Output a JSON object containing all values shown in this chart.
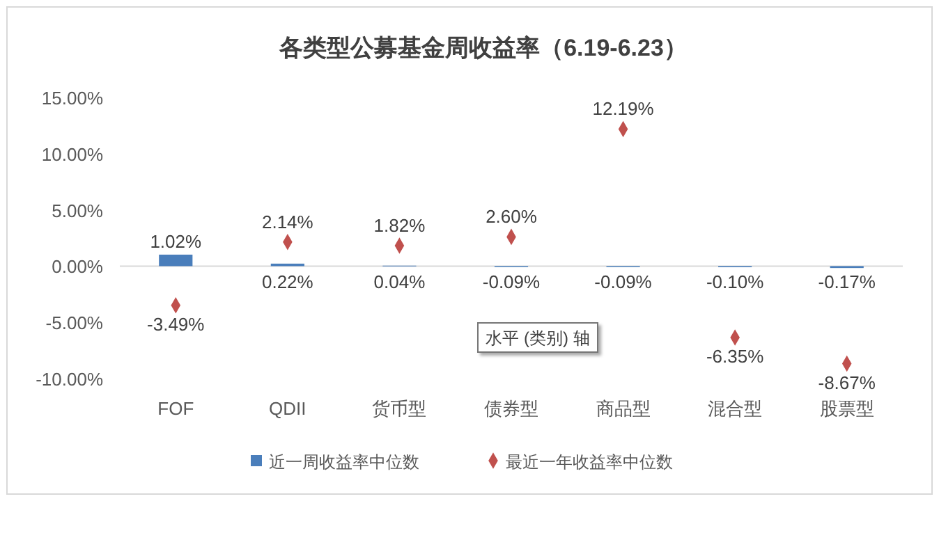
{
  "chart_data": {
    "type": "bar",
    "title": "各类型公募基金周收益率（6.19-6.23）",
    "categories": [
      "FOF",
      "QDII",
      "货币型",
      "债券型",
      "商品型",
      "混合型",
      "股票型"
    ],
    "series": [
      {
        "name": "近一周收益率中位数",
        "color": "#4a7ebb",
        "values": [
          1.02,
          0.22,
          0.04,
          -0.09,
          -0.09,
          -0.1,
          -0.17
        ],
        "value_labels": [
          "1.02%",
          "0.22%",
          "0.04%",
          "-0.09%",
          "-0.09%",
          "-0.10%",
          "-0.17%"
        ]
      },
      {
        "name": "最近一年收益率中位数",
        "type": "scatter",
        "color": "#c0504d",
        "values": [
          -3.49,
          2.14,
          1.82,
          2.6,
          12.19,
          -6.35,
          -8.67
        ],
        "value_labels": [
          "-3.49%",
          "2.14%",
          "1.82%",
          "2.60%",
          "12.19%",
          "-6.35%",
          "-8.67%"
        ]
      }
    ],
    "ylim": [
      -10,
      15
    ],
    "yticks": [
      {
        "value": -10,
        "label": "-10.00%"
      },
      {
        "value": -5,
        "label": "-5.00%"
      },
      {
        "value": 0,
        "label": "0.00%"
      },
      {
        "value": 5,
        "label": "5.00%"
      },
      {
        "value": 10,
        "label": "10.00%"
      },
      {
        "value": 15,
        "label": "15.00%"
      }
    ],
    "legend": "bottom",
    "marker": "diamond",
    "annotations": [
      "水平 (类别) 轴"
    ]
  }
}
